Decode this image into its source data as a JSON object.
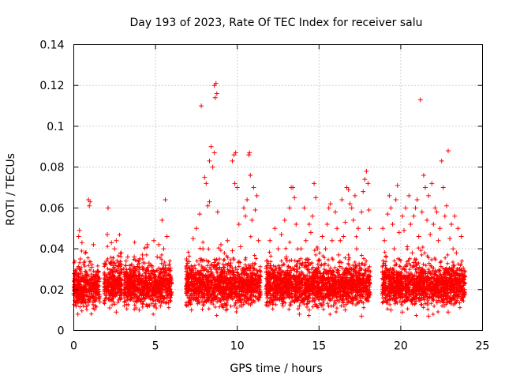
{
  "chart_data": {
    "type": "scatter",
    "title": "Day 193 of 2023, Rate Of TEC Index for receiver salu",
    "xlabel": "GPS time / hours",
    "ylabel": "ROTI / TECUs",
    "xlim": [
      0,
      25
    ],
    "ylim": [
      0,
      0.14
    ],
    "xticks": [
      0,
      5,
      10,
      15,
      20,
      25
    ],
    "xtick_labels": [
      "0",
      "5",
      "10",
      "15",
      "20",
      "25"
    ],
    "yticks": [
      0,
      0.02,
      0.04,
      0.06,
      0.08,
      0.1,
      0.12,
      0.14
    ],
    "ytick_labels": [
      "0",
      "0.02",
      "0.04",
      "0.06",
      "0.08",
      "0.1",
      "0.12",
      "0.14"
    ],
    "grid": true,
    "marker": "+",
    "color": "#ff0000",
    "series": [
      {
        "name": "ROTI",
        "points": [
          [
            0.0,
            0.018
          ],
          [
            0.1,
            0.022
          ],
          [
            0.15,
            0.012
          ],
          [
            0.2,
            0.03
          ],
          [
            0.25,
            0.008
          ],
          [
            0.3,
            0.046
          ],
          [
            0.35,
            0.049
          ],
          [
            0.4,
            0.035
          ],
          [
            0.45,
            0.025
          ],
          [
            0.5,
            0.043
          ],
          [
            0.55,
            0.016
          ],
          [
            0.6,
            0.02
          ],
          [
            0.7,
            0.038
          ],
          [
            0.8,
            0.027
          ],
          [
            0.9,
            0.064
          ],
          [
            0.95,
            0.061
          ],
          [
            1.0,
            0.063
          ],
          [
            1.1,
            0.031
          ],
          [
            1.2,
            0.042
          ],
          [
            1.3,
            0.019
          ],
          [
            1.4,
            0.024
          ],
          [
            1.5,
            0.029
          ],
          [
            1.6,
            0.014
          ],
          [
            1.9,
            0.021
          ],
          [
            2.0,
            0.034
          ],
          [
            2.05,
            0.047
          ],
          [
            2.1,
            0.06
          ],
          [
            2.2,
            0.028
          ],
          [
            2.3,
            0.043
          ],
          [
            2.4,
            0.017
          ],
          [
            2.5,
            0.04
          ],
          [
            2.6,
            0.044
          ],
          [
            2.7,
            0.025
          ],
          [
            2.8,
            0.032
          ],
          [
            2.9,
            0.038
          ],
          [
            2.6,
            0.009
          ],
          [
            2.2,
            0.011
          ],
          [
            3.1,
            0.02
          ],
          [
            3.2,
            0.034
          ],
          [
            3.3,
            0.036
          ],
          [
            3.4,
            0.018
          ],
          [
            3.5,
            0.026
          ],
          [
            3.6,
            0.03
          ],
          [
            3.7,
            0.036
          ],
          [
            3.8,
            0.011
          ],
          [
            3.9,
            0.024
          ],
          [
            4.0,
            0.031
          ],
          [
            4.2,
            0.037
          ],
          [
            4.4,
            0.028
          ],
          [
            4.5,
            0.042
          ],
          [
            4.6,
            0.033
          ],
          [
            4.8,
            0.02
          ],
          [
            4.9,
            0.044
          ],
          [
            5.0,
            0.024
          ],
          [
            5.1,
            0.036
          ],
          [
            5.2,
            0.042
          ],
          [
            5.4,
            0.054
          ],
          [
            5.5,
            0.04
          ],
          [
            5.6,
            0.064
          ],
          [
            5.7,
            0.046
          ],
          [
            5.8,
            0.03
          ],
          [
            5.9,
            0.018
          ],
          [
            4.0,
            0.01
          ],
          [
            5.3,
            0.012
          ],
          [
            6.9,
            0.035
          ],
          [
            7.0,
            0.02
          ],
          [
            7.1,
            0.03
          ],
          [
            7.2,
            0.01
          ],
          [
            7.3,
            0.045
          ],
          [
            7.4,
            0.027
          ],
          [
            7.5,
            0.05
          ],
          [
            7.6,
            0.015
          ],
          [
            7.7,
            0.057
          ],
          [
            7.8,
            0.11
          ],
          [
            7.9,
            0.04
          ],
          [
            8.0,
            0.075
          ],
          [
            8.1,
            0.072
          ],
          [
            8.2,
            0.061
          ],
          [
            8.3,
            0.063
          ],
          [
            8.4,
            0.09
          ],
          [
            8.5,
            0.08
          ],
          [
            8.6,
            0.12
          ],
          [
            8.65,
            0.114
          ],
          [
            8.7,
            0.121
          ],
          [
            8.75,
            0.116
          ],
          [
            8.8,
            0.058
          ],
          [
            8.9,
            0.035
          ],
          [
            9.0,
            0.042
          ],
          [
            9.1,
            0.02
          ],
          [
            9.2,
            0.031
          ],
          [
            9.3,
            0.01
          ],
          [
            9.4,
            0.044
          ],
          [
            9.5,
            0.025
          ],
          [
            9.6,
            0.033
          ],
          [
            9.7,
            0.039
          ],
          [
            9.8,
            0.086
          ],
          [
            9.85,
            0.072
          ],
          [
            9.9,
            0.087
          ],
          [
            10.0,
            0.07
          ],
          [
            10.1,
            0.052
          ],
          [
            10.2,
            0.041
          ],
          [
            10.3,
            0.03
          ],
          [
            10.4,
            0.06
          ],
          [
            10.5,
            0.056
          ],
          [
            10.6,
            0.064
          ],
          [
            10.7,
            0.086
          ],
          [
            10.75,
            0.087
          ],
          [
            10.8,
            0.076
          ],
          [
            10.9,
            0.054
          ],
          [
            11.0,
            0.07
          ],
          [
            11.1,
            0.059
          ],
          [
            11.2,
            0.066
          ],
          [
            11.3,
            0.044
          ],
          [
            11.4,
            0.019
          ],
          [
            8.3,
            0.083
          ],
          [
            8.6,
            0.087
          ],
          [
            9.7,
            0.083
          ],
          [
            11.8,
            0.034
          ],
          [
            11.9,
            0.024
          ],
          [
            12.0,
            0.044
          ],
          [
            12.1,
            0.015
          ],
          [
            12.2,
            0.028
          ],
          [
            12.3,
            0.05
          ],
          [
            12.4,
            0.02
          ],
          [
            12.5,
            0.04
          ],
          [
            12.6,
            0.031
          ],
          [
            12.7,
            0.047
          ],
          [
            12.8,
            0.012
          ],
          [
            12.9,
            0.054
          ],
          [
            13.0,
            0.036
          ],
          [
            13.1,
            0.025
          ],
          [
            13.2,
            0.06
          ],
          [
            13.3,
            0.07
          ],
          [
            13.4,
            0.07
          ],
          [
            13.5,
            0.065
          ],
          [
            13.6,
            0.052
          ],
          [
            13.7,
            0.03
          ],
          [
            13.8,
            0.012
          ],
          [
            13.9,
            0.04
          ],
          [
            14.0,
            0.033
          ],
          [
            14.1,
            0.06
          ],
          [
            14.2,
            0.044
          ],
          [
            14.3,
            0.022
          ],
          [
            14.4,
            0.052
          ],
          [
            14.5,
            0.048
          ],
          [
            14.6,
            0.056
          ],
          [
            14.7,
            0.072
          ],
          [
            14.8,
            0.065
          ],
          [
            14.9,
            0.04
          ],
          [
            15.0,
            0.034
          ],
          [
            15.1,
            0.018
          ],
          [
            15.2,
            0.046
          ],
          [
            15.3,
            0.028
          ],
          [
            15.4,
            0.04
          ],
          [
            15.5,
            0.052
          ],
          [
            15.6,
            0.06
          ],
          [
            15.7,
            0.062
          ],
          [
            15.8,
            0.044
          ],
          [
            15.9,
            0.024
          ],
          [
            16.0,
            0.058
          ],
          [
            16.1,
            0.05
          ],
          [
            16.2,
            0.037
          ],
          [
            16.3,
            0.044
          ],
          [
            16.4,
            0.064
          ],
          [
            16.5,
            0.046
          ],
          [
            16.6,
            0.053
          ],
          [
            16.7,
            0.07
          ],
          [
            16.8,
            0.069
          ],
          [
            16.9,
            0.062
          ],
          [
            17.0,
            0.06
          ],
          [
            17.1,
            0.054
          ],
          [
            17.2,
            0.066
          ],
          [
            17.3,
            0.04
          ],
          [
            17.4,
            0.05
          ],
          [
            17.5,
            0.03
          ],
          [
            17.6,
            0.058
          ],
          [
            17.7,
            0.068
          ],
          [
            17.8,
            0.074
          ],
          [
            17.9,
            0.078
          ],
          [
            18.0,
            0.072
          ],
          [
            18.05,
            0.059
          ],
          [
            18.1,
            0.05
          ],
          [
            17.6,
            0.007
          ],
          [
            13.8,
            0.008
          ],
          [
            14.4,
            0.01
          ],
          [
            16.6,
            0.01
          ],
          [
            18.9,
            0.05
          ],
          [
            19.0,
            0.044
          ],
          [
            19.1,
            0.036
          ],
          [
            19.2,
            0.057
          ],
          [
            19.3,
            0.066
          ],
          [
            19.4,
            0.06
          ],
          [
            19.5,
            0.052
          ],
          [
            19.6,
            0.04
          ],
          [
            19.7,
            0.064
          ],
          [
            19.8,
            0.071
          ],
          [
            19.9,
            0.048
          ],
          [
            20.0,
            0.022
          ],
          [
            20.1,
            0.056
          ],
          [
            20.2,
            0.049
          ],
          [
            20.3,
            0.06
          ],
          [
            20.4,
            0.041
          ],
          [
            20.5,
            0.066
          ],
          [
            20.6,
            0.052
          ],
          [
            20.7,
            0.038
          ],
          [
            20.8,
            0.056
          ],
          [
            20.9,
            0.06
          ],
          [
            21.0,
            0.064
          ],
          [
            21.1,
            0.046
          ],
          [
            21.2,
            0.113
          ],
          [
            21.3,
            0.058
          ],
          [
            21.4,
            0.076
          ],
          [
            21.5,
            0.07
          ],
          [
            21.6,
            0.054
          ],
          [
            21.7,
            0.066
          ],
          [
            21.8,
            0.047
          ],
          [
            21.9,
            0.072
          ],
          [
            22.0,
            0.052
          ],
          [
            22.1,
            0.06
          ],
          [
            22.2,
            0.058
          ],
          [
            22.3,
            0.044
          ],
          [
            22.4,
            0.05
          ],
          [
            22.5,
            0.083
          ],
          [
            22.6,
            0.07
          ],
          [
            22.7,
            0.056
          ],
          [
            22.8,
            0.061
          ],
          [
            22.9,
            0.088
          ],
          [
            23.0,
            0.045
          ],
          [
            23.1,
            0.052
          ],
          [
            23.2,
            0.04
          ],
          [
            23.3,
            0.056
          ],
          [
            23.4,
            0.038
          ],
          [
            23.5,
            0.05
          ],
          [
            23.6,
            0.03
          ],
          [
            23.7,
            0.046
          ],
          [
            23.8,
            0.028
          ],
          [
            23.9,
            0.02
          ],
          [
            20.1,
            0.009
          ],
          [
            21.7,
            0.007
          ],
          [
            22.9,
            0.009
          ],
          [
            19.4,
            0.01
          ]
        ]
      }
    ]
  }
}
